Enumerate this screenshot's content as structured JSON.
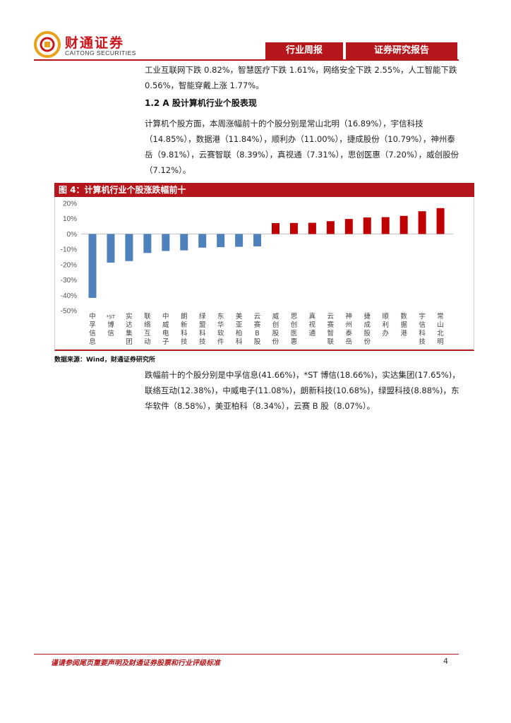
{
  "brand": {
    "name_cn": "财通证券",
    "name_en": "CAITONG SECURITIES",
    "color": "#b5161b"
  },
  "header": {
    "tab_weekly": "行业周报",
    "tab_report": "证券研究报告"
  },
  "body": {
    "para1": "工业互联网下跌 0.82%，智慧医疗下跌 1.61%，网络安全下跌 2.55%，人工智能下跌 0.56%，智能穿戴上涨 1.77%。",
    "section_title": "1.2  A 股计算机行业个股表现",
    "para2": "计算机个股方面，本周涨幅前十的个股分别是常山北明（16.89%），宇信科技（14.85%），数据港（11.84%），顺利办（11.00%），捷成股份（10.79%），神州泰岳（9.81%），云赛智联（8.39%），真视通（7.31%），思创医惠（7.20%），威创股份（7.12%）。",
    "para3": "跌幅前十的个股分别是中孚信息(41.66%)，*ST 博信(18.66%)，实达集团(17.65%)，联络互动(12.38%)，中威电子(11.08%)，朗新科技(10.68%)，绿盟科技(8.88%)，东华软件（8.58%），美亚柏科（8.34%），云赛 B 股（8.07%）。"
  },
  "figure": {
    "title": "图 4：计算机行业个股涨跌幅前十",
    "source": "数据来源：Wind，财通证券研究所"
  },
  "chart_data": {
    "type": "bar",
    "categories": [
      "中孚信息",
      "*ST博信",
      "实达集团",
      "联络互动",
      "中威电子",
      "朗新科技",
      "绿盟科技",
      "东华软件",
      "美亚柏科",
      "云赛B股",
      "威创股份",
      "思创医惠",
      "真视通",
      "云赛智联",
      "神州泰岳",
      "捷成股份",
      "顺利办",
      "数据港",
      "宇信科技",
      "常山北明"
    ],
    "values": [
      -41.66,
      -18.66,
      -17.65,
      -12.38,
      -11.08,
      -10.68,
      -8.88,
      -8.58,
      -8.34,
      -8.07,
      7.12,
      7.2,
      7.31,
      8.39,
      9.81,
      10.79,
      11.0,
      11.84,
      14.85,
      16.89
    ],
    "ylim": [
      -50,
      20
    ],
    "yticks": [
      "20%",
      "10%",
      "0%",
      "-10%",
      "-20%",
      "-30%",
      "-40%",
      "-50%"
    ],
    "colors": {
      "negative": "#4f81bd",
      "positive": "#c00000"
    },
    "grid": false,
    "legend": "none"
  },
  "footer": {
    "disclaimer": "谨请参阅尾页重要声明及财通证券股票和行业评级标准",
    "page": "4"
  }
}
